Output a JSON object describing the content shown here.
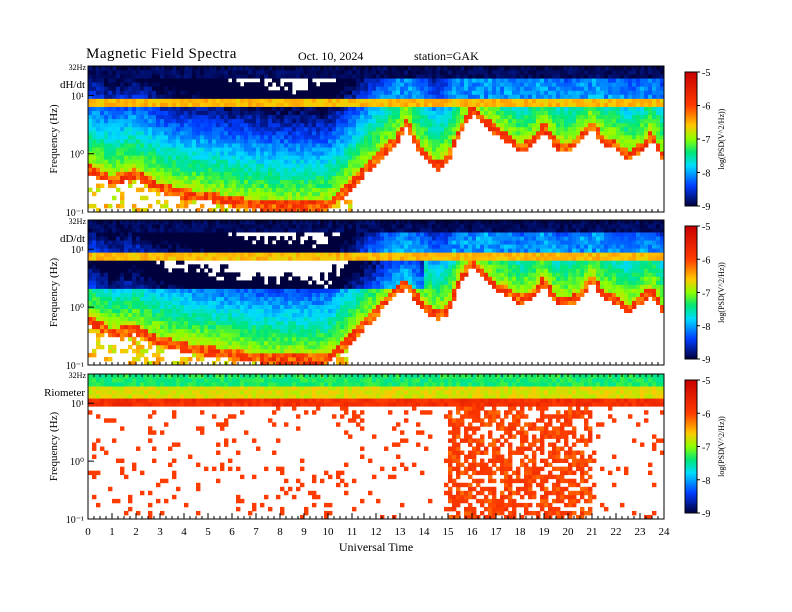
{
  "header": {
    "title": "Magnetic Field Spectra",
    "date": "Oct. 10, 2024",
    "station": "station=GAK"
  },
  "chart_data": [
    {
      "type": "heatmap",
      "panel_label": "dH/dt",
      "ylabel": "Frequency (Hz)",
      "yscale": "log",
      "ylim": [
        0.1,
        32
      ],
      "yticks": [
        "10⁻¹",
        "10⁰",
        "10¹"
      ],
      "top_label": "32Hz",
      "xlabel": "",
      "xlim": [
        0,
        24
      ],
      "colorbar": {
        "label": "log(PSD(V^2/Hz))",
        "ticks": [
          "-5",
          "-6",
          "-7",
          "-8",
          "-9"
        ],
        "range": [
          -9,
          -5
        ]
      },
      "features": {
        "noise_band_hz": 7,
        "cutoff_curve": [
          {
            "x": 0,
            "y": 0.55
          },
          {
            "x": 1,
            "y": 0.35
          },
          {
            "x": 2,
            "y": 0.45
          },
          {
            "x": 3,
            "y": 0.25
          },
          {
            "x": 4,
            "y": 0.2
          },
          {
            "x": 5,
            "y": 0.18
          },
          {
            "x": 6,
            "y": 0.15
          },
          {
            "x": 7,
            "y": 0.13
          },
          {
            "x": 8,
            "y": 0.12
          },
          {
            "x": 9,
            "y": 0.12
          },
          {
            "x": 10,
            "y": 0.12
          },
          {
            "x": 11,
            "y": 0.3
          },
          {
            "x": 11.5,
            "y": 0.5
          },
          {
            "x": 12,
            "y": 0.8
          },
          {
            "x": 12.8,
            "y": 1.6
          },
          {
            "x": 13.3,
            "y": 3.5
          },
          {
            "x": 13.6,
            "y": 1.6
          },
          {
            "x": 14,
            "y": 1.0
          },
          {
            "x": 14.5,
            "y": 0.6
          },
          {
            "x": 15,
            "y": 0.8
          },
          {
            "x": 15.5,
            "y": 2.5
          },
          {
            "x": 16,
            "y": 5.5
          },
          {
            "x": 16.5,
            "y": 3.5
          },
          {
            "x": 17,
            "y": 2.5
          },
          {
            "x": 17.5,
            "y": 1.8
          },
          {
            "x": 18,
            "y": 1.2
          },
          {
            "x": 18.5,
            "y": 1.5
          },
          {
            "x": 19,
            "y": 3.0
          },
          {
            "x": 19.5,
            "y": 1.4
          },
          {
            "x": 20,
            "y": 1.2
          },
          {
            "x": 20.5,
            "y": 1.8
          },
          {
            "x": 21,
            "y": 3.2
          },
          {
            "x": 21.5,
            "y": 1.5
          },
          {
            "x": 22,
            "y": 1.4
          },
          {
            "x": 22.5,
            "y": 0.9
          },
          {
            "x": 23,
            "y": 1.2
          },
          {
            "x": 23.5,
            "y": 2.0
          },
          {
            "x": 24,
            "y": 0.8
          }
        ]
      }
    },
    {
      "type": "heatmap",
      "panel_label": "dD/dt",
      "ylabel": "Frequency (Hz)",
      "yscale": "log",
      "ylim": [
        0.1,
        32
      ],
      "yticks": [
        "10⁻¹",
        "10⁰",
        "10¹"
      ],
      "top_label": "32Hz",
      "xlabel": "",
      "xlim": [
        0,
        24
      ],
      "colorbar": {
        "label": "log(PSD(V^2/Hz))",
        "ticks": [
          "-5",
          "-6",
          "-7",
          "-8",
          "-9"
        ],
        "range": [
          -9,
          -5
        ]
      },
      "features": {
        "noise_band_hz": 7,
        "cutoff_curve": [
          {
            "x": 0,
            "y": 0.6
          },
          {
            "x": 1,
            "y": 0.35
          },
          {
            "x": 2,
            "y": 0.4
          },
          {
            "x": 3,
            "y": 0.25
          },
          {
            "x": 4,
            "y": 0.2
          },
          {
            "x": 5,
            "y": 0.17
          },
          {
            "x": 6,
            "y": 0.15
          },
          {
            "x": 7,
            "y": 0.13
          },
          {
            "x": 8,
            "y": 0.12
          },
          {
            "x": 9,
            "y": 0.12
          },
          {
            "x": 10,
            "y": 0.12
          },
          {
            "x": 11,
            "y": 0.3
          },
          {
            "x": 11.5,
            "y": 0.5
          },
          {
            "x": 12,
            "y": 0.8
          },
          {
            "x": 12.8,
            "y": 1.8
          },
          {
            "x": 13.3,
            "y": 2.5
          },
          {
            "x": 13.6,
            "y": 1.6
          },
          {
            "x": 14,
            "y": 1.0
          },
          {
            "x": 14.5,
            "y": 0.7
          },
          {
            "x": 15,
            "y": 0.9
          },
          {
            "x": 15.5,
            "y": 2.8
          },
          {
            "x": 16,
            "y": 6.0
          },
          {
            "x": 16.5,
            "y": 3.5
          },
          {
            "x": 17,
            "y": 2.2
          },
          {
            "x": 17.5,
            "y": 1.8
          },
          {
            "x": 18,
            "y": 1.3
          },
          {
            "x": 18.5,
            "y": 1.6
          },
          {
            "x": 19,
            "y": 2.8
          },
          {
            "x": 19.5,
            "y": 1.3
          },
          {
            "x": 20,
            "y": 1.2
          },
          {
            "x": 20.5,
            "y": 1.6
          },
          {
            "x": 21,
            "y": 3.0
          },
          {
            "x": 21.5,
            "y": 1.6
          },
          {
            "x": 22,
            "y": 1.3
          },
          {
            "x": 22.5,
            "y": 0.9
          },
          {
            "x": 23,
            "y": 1.3
          },
          {
            "x": 23.5,
            "y": 1.9
          },
          {
            "x": 24,
            "y": 0.8
          }
        ]
      }
    },
    {
      "type": "heatmap",
      "panel_label": "Riometer",
      "ylabel": "Frequency (Hz)",
      "yscale": "log",
      "ylim": [
        0.1,
        32
      ],
      "yticks": [
        "10⁻¹",
        "10⁰",
        "10¹"
      ],
      "top_label": "32Hz",
      "xlabel": "Universal Time",
      "xlim": [
        0,
        24
      ],
      "xticks": [
        "0",
        "1",
        "2",
        "3",
        "4",
        "5",
        "6",
        "7",
        "8",
        "9",
        "10",
        "11",
        "12",
        "13",
        "14",
        "15",
        "16",
        "17",
        "18",
        "19",
        "20",
        "21",
        "22",
        "23",
        "24"
      ],
      "colorbar": {
        "label": "log(PSD(V^2/Hz))",
        "ticks": [
          "-5",
          "-6",
          "-7",
          "-8",
          "-9"
        ],
        "range": [
          -9,
          -5
        ]
      },
      "features": {
        "noise_band_hz": 15,
        "streak_range_ut": [
          15,
          21
        ]
      }
    }
  ],
  "colors": {
    "colormap": [
      "#ffffff",
      "#e01010",
      "#ff8800",
      "#ffff00",
      "#00ff00",
      "#00ffff",
      "#0000ff",
      "#000020"
    ]
  }
}
